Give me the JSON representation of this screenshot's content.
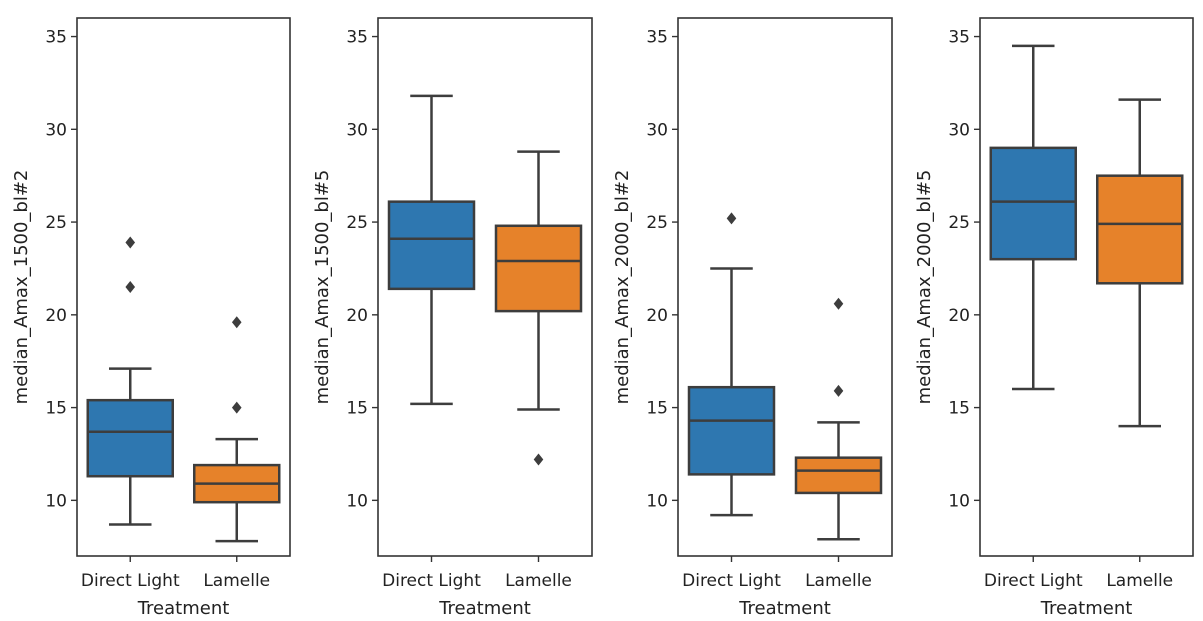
{
  "chart_data": [
    {
      "type": "box",
      "xlabel": "Treatment",
      "ylabel": "median_Amax_1500_bl#2",
      "ylim": [
        7,
        36
      ],
      "yticks": [
        10,
        15,
        20,
        25,
        30,
        35
      ],
      "categories": [
        "Direct Light",
        "Lamelle"
      ],
      "colors": [
        "#2e77b0",
        "#e6822a"
      ],
      "boxes": [
        {
          "whislo": 8.7,
          "q1": 11.3,
          "med": 13.7,
          "q3": 15.4,
          "whishi": 17.1,
          "fliers": [
            21.5,
            23.9
          ]
        },
        {
          "whislo": 7.8,
          "q1": 9.9,
          "med": 10.9,
          "q3": 11.9,
          "whishi": 13.3,
          "fliers": [
            15.0,
            19.6
          ]
        }
      ]
    },
    {
      "type": "box",
      "xlabel": "Treatment",
      "ylabel": "median_Amax_1500_bl#5",
      "ylim": [
        7,
        36
      ],
      "yticks": [
        10,
        15,
        20,
        25,
        30,
        35
      ],
      "categories": [
        "Direct Light",
        "Lamelle"
      ],
      "colors": [
        "#2e77b0",
        "#e6822a"
      ],
      "boxes": [
        {
          "whislo": 15.2,
          "q1": 21.4,
          "med": 24.1,
          "q3": 26.1,
          "whishi": 31.8,
          "fliers": []
        },
        {
          "whislo": 14.9,
          "q1": 20.2,
          "med": 22.9,
          "q3": 24.8,
          "whishi": 28.8,
          "fliers": [
            12.2
          ]
        }
      ]
    },
    {
      "type": "box",
      "xlabel": "Treatment",
      "ylabel": "median_Amax_2000_bl#2",
      "ylim": [
        7,
        36
      ],
      "yticks": [
        10,
        15,
        20,
        25,
        30,
        35
      ],
      "categories": [
        "Direct Light",
        "Lamelle"
      ],
      "colors": [
        "#2e77b0",
        "#e6822a"
      ],
      "boxes": [
        {
          "whislo": 9.2,
          "q1": 11.4,
          "med": 14.3,
          "q3": 16.1,
          "whishi": 22.5,
          "fliers": [
            25.2
          ]
        },
        {
          "whislo": 7.9,
          "q1": 10.4,
          "med": 11.6,
          "q3": 12.3,
          "whishi": 14.2,
          "fliers": [
            15.9,
            20.6
          ]
        }
      ]
    },
    {
      "type": "box",
      "xlabel": "Treatment",
      "ylabel": "median_Amax_2000_bl#5",
      "ylim": [
        7,
        36
      ],
      "yticks": [
        10,
        15,
        20,
        25,
        30,
        35
      ],
      "categories": [
        "Direct Light",
        "Lamelle"
      ],
      "colors": [
        "#2e77b0",
        "#e6822a"
      ],
      "boxes": [
        {
          "whislo": 16.0,
          "q1": 23.0,
          "med": 26.1,
          "q3": 29.0,
          "whishi": 34.5,
          "fliers": []
        },
        {
          "whislo": 14.0,
          "q1": 21.7,
          "med": 24.9,
          "q3": 27.5,
          "whishi": 31.6,
          "fliers": []
        }
      ]
    }
  ]
}
